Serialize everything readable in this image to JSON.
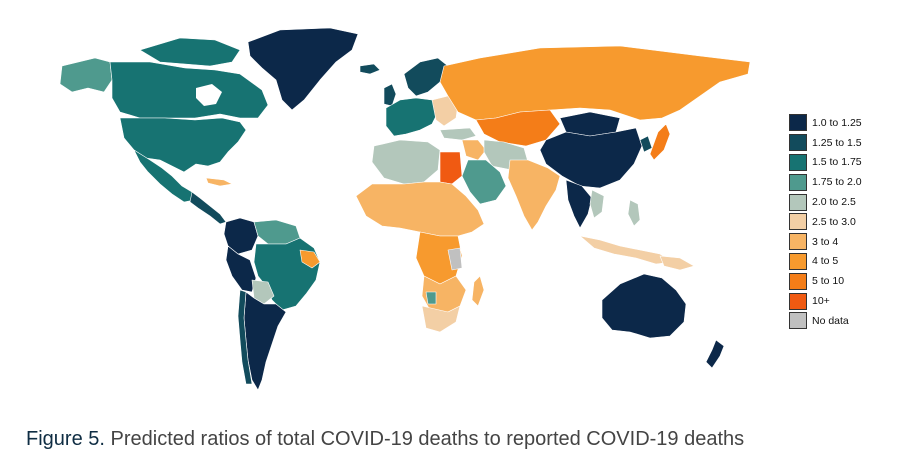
{
  "caption": {
    "label": "Figure 5.",
    "text": "Predicted ratios of total COVID-19 deaths to reported COVID-19 deaths"
  },
  "legend": {
    "items": [
      {
        "label": "1.0 to 1.25",
        "color": "#0c2849"
      },
      {
        "label": "1.25 to 1.5",
        "color": "#124b5c"
      },
      {
        "label": "1.5 to 1.75",
        "color": "#177372"
      },
      {
        "label": "1.75 to 2.0",
        "color": "#4f9a8e"
      },
      {
        "label": "2.0 to 2.5",
        "color": "#b3c7bb"
      },
      {
        "label": "2.5 to 3.0",
        "color": "#f3cfa5"
      },
      {
        "label": "3 to 4",
        "color": "#f7b464"
      },
      {
        "label": "4 to 5",
        "color": "#f79a2e"
      },
      {
        "label": "5 to 10",
        "color": "#f47d18"
      },
      {
        "label": "10+",
        "color": "#f05a12"
      },
      {
        "label": "No data",
        "color": "#c0c0c0"
      }
    ]
  },
  "map": {
    "type": "choropleth",
    "regions": [
      {
        "name": "Greenland",
        "bin": "1.0 to 1.25"
      },
      {
        "name": "Canada",
        "bin": "1.5 to 1.75"
      },
      {
        "name": "Alaska",
        "bin": "1.75 to 2.0"
      },
      {
        "name": "United States",
        "bin": "1.5 to 1.75"
      },
      {
        "name": "Mexico",
        "bin": "1.5 to 1.75"
      },
      {
        "name": "Central America",
        "bin": "1.25 to 1.5"
      },
      {
        "name": "Colombia",
        "bin": "1.0 to 1.25"
      },
      {
        "name": "Venezuela",
        "bin": "1.75 to 2.0"
      },
      {
        "name": "Peru",
        "bin": "1.0 to 1.25"
      },
      {
        "name": "Brazil",
        "bin": "1.5 to 1.75"
      },
      {
        "name": "Northeast Brazil",
        "bin": "4 to 5"
      },
      {
        "name": "Bolivia",
        "bin": "2.0 to 2.5"
      },
      {
        "name": "Argentina",
        "bin": "1.0 to 1.25"
      },
      {
        "name": "Chile",
        "bin": "1.25 to 1.5"
      },
      {
        "name": "Western Europe",
        "bin": "1.5 to 1.75"
      },
      {
        "name": "Scandinavia",
        "bin": "1.25 to 1.5"
      },
      {
        "name": "Russia",
        "bin": "4 to 5"
      },
      {
        "name": "Kazakhstan",
        "bin": "5 to 10"
      },
      {
        "name": "Mongolia",
        "bin": "1.0 to 1.25"
      },
      {
        "name": "China",
        "bin": "1.0 to 1.25"
      },
      {
        "name": "Japan",
        "bin": "5 to 10"
      },
      {
        "name": "North Africa",
        "bin": "2.0 to 2.5"
      },
      {
        "name": "Egypt",
        "bin": "10+"
      },
      {
        "name": "Arabian Peninsula",
        "bin": "1.75 to 2.0"
      },
      {
        "name": "Iran",
        "bin": "2.0 to 2.5"
      },
      {
        "name": "India",
        "bin": "3 to 4"
      },
      {
        "name": "Southeast Asia",
        "bin": "1.0 to 1.25"
      },
      {
        "name": "Indonesia",
        "bin": "2.5 to 3.0"
      },
      {
        "name": "Sub-Saharan Africa",
        "bin": "3 to 4"
      },
      {
        "name": "Central Africa",
        "bin": "4 to 5"
      },
      {
        "name": "South Africa",
        "bin": "2.5 to 3.0"
      },
      {
        "name": "Madagascar",
        "bin": "3 to 4"
      },
      {
        "name": "Australia",
        "bin": "1.0 to 1.25"
      },
      {
        "name": "New Zealand",
        "bin": "1.0 to 1.25"
      }
    ]
  }
}
